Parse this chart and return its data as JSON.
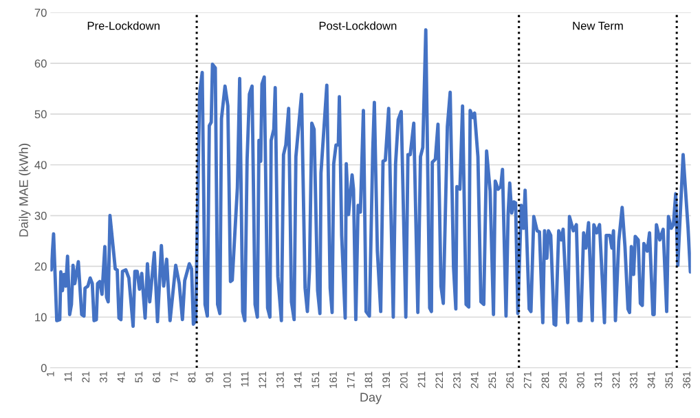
{
  "chart_data": {
    "type": "line",
    "xlabel": "Day",
    "ylabel": "Daily MAE (kWh)",
    "xlim": [
      0.5,
      362.9
    ],
    "xticks": [
      1,
      11,
      21,
      31,
      41,
      51,
      61,
      71,
      81,
      91,
      101,
      111,
      121,
      131,
      141,
      151,
      161,
      171,
      181,
      191,
      201,
      211,
      221,
      231,
      241,
      251,
      261,
      271,
      281,
      291,
      301,
      311,
      321,
      331,
      341,
      351,
      361
    ],
    "ylim": [
      0,
      70
    ],
    "yticks": [
      0,
      10,
      20,
      30,
      40,
      50,
      60,
      70
    ],
    "grid": "y",
    "marker": "none",
    "line_style": "solid",
    "ref_lines": [
      {
        "axis": "x",
        "value": 83.3,
        "color": "#000000",
        "line_style": "dotted"
      },
      {
        "axis": "x",
        "value": 265.6,
        "color": "#000000",
        "line_style": "dotted"
      },
      {
        "axis": "x",
        "value": 354.9,
        "color": "#000000",
        "line_style": "dotted"
      }
    ],
    "annotations": [
      "Pre-Lockdown",
      "Post-Lockdown",
      "New Term"
    ],
    "series": [
      {
        "color": "#4472c4",
        "x": [
          1,
          2.3,
          4.1,
          5.8,
          6.4,
          7.3,
          8.2,
          9.2,
          10.2,
          11.4,
          12.4,
          13.3,
          14.3,
          16.3,
          18.2,
          19.5,
          20.1,
          21.7,
          23,
          24.2,
          25.2,
          26.5,
          27.2,
          28.4,
          29.7,
          31.3,
          32.3,
          33.2,
          34.2,
          36.1,
          37.2,
          38.3,
          39.3,
          40.4,
          41.3,
          43.2,
          44.9,
          47.3,
          48.3,
          49.6,
          50.9,
          52.2,
          54.1,
          55.4,
          56.7,
          59.3,
          61.1,
          63.3,
          64.6,
          66.3,
          68.2,
          71.4,
          73.4,
          75.2,
          76.5,
          79.1,
          80.4,
          81.4,
          82.7,
          84.9,
          86.4,
          88.0,
          89.3,
          90.4,
          91.5,
          92.2,
          93.8,
          95.1,
          96.4,
          97.3,
          99.3,
          100.9,
          102.4,
          103.4,
          106.3,
          107.6,
          109.3,
          110.5,
          111.8,
          113.1,
          114.6,
          116.3,
          117.6,
          118.5,
          119.5,
          120.2,
          121.5,
          123.4,
          124.7,
          125.4,
          126.9,
          127.7,
          129.2,
          131.2,
          132.4,
          133.7,
          135.3,
          136.9,
          138.4,
          139.4,
          142.6,
          144.6,
          145.9,
          147.1,
          148.4,
          149.7,
          151.7,
          153,
          153.6,
          156.9,
          158.8,
          159.9,
          160.8,
          162.1,
          163.4,
          164,
          165.3,
          167.3,
          167.9,
          169.2,
          171.2,
          172,
          173.3,
          174.6,
          175.9,
          177.6,
          179.1,
          181.0,
          182.9,
          183.8,
          185.5,
          187.4,
          188.7,
          190.0,
          191.9,
          194.5,
          195.8,
          197.3,
          199.0,
          201.6,
          202.8,
          204.1,
          206.1,
          208.4,
          209.9,
          211.2,
          212.9,
          215.1,
          216.1,
          216.6,
          218.3,
          219.8,
          221.5,
          222.8,
          225.1,
          226.7,
          228.6,
          229.9,
          230.5,
          232.2,
          233.7,
          235.7,
          237.2,
          238,
          239.6,
          240.5,
          242.4,
          244.1,
          245.7,
          247.3,
          249.3,
          251.2,
          252.2,
          253.8,
          255.3,
          256.3,
          258.3,
          259.5,
          260.4,
          261.5,
          262.7,
          263.7,
          265.0,
          266.9,
          268.2,
          269.1,
          271.4,
          272.4,
          274.0,
          275.9,
          277.2,
          279.1,
          280.1,
          281.4,
          282.3,
          283.6,
          285.5,
          286.4,
          288.1,
          289.6,
          290.6,
          293.2,
          294.2,
          296.4,
          298.1,
          299.6,
          300.7,
          302.2,
          303.5,
          305.0,
          307.1,
          308.0,
          309.6,
          311.2,
          314.0,
          315.0,
          317.0,
          318.2,
          319.1,
          320.2,
          322.1,
          324.0,
          325.6,
          327.3,
          328.2,
          329.2,
          330.5,
          331.4,
          333.1,
          334.3,
          335.4,
          336.3,
          338.2,
          339.5,
          341.4,
          342.1,
          343.4,
          345.3,
          347.2,
          349.2,
          350.2,
          351.8,
          353.0,
          354.3,
          355.5,
          358.5,
          361.3,
          362.6
        ],
        "values": [
          19.3,
          26.4,
          9.3,
          9.5,
          18.9,
          15.2,
          18.4,
          16.1,
          22,
          10.5,
          12.5,
          20.2,
          16.6,
          20.9,
          10.5,
          10.2,
          15.7,
          16.1,
          17.7,
          16.6,
          9.3,
          9.5,
          16.6,
          17,
          14.5,
          23.9,
          13.9,
          13,
          30,
          23.4,
          19.5,
          19.3,
          9.8,
          9.5,
          19,
          19.3,
          17.7,
          8.2,
          19,
          19,
          15.5,
          18.6,
          9.8,
          20.5,
          13,
          22.7,
          9.1,
          24.1,
          16.1,
          21.4,
          9.3,
          20.2,
          16.6,
          9.5,
          17.2,
          20.5,
          19.5,
          8.6,
          9.3,
          53.9,
          58.2,
          12.5,
          10.2,
          47.7,
          48.4,
          59.8,
          59.1,
          12.5,
          10.7,
          49.1,
          55.5,
          51.6,
          17,
          17.3,
          35.5,
          57,
          11.1,
          9.3,
          41.1,
          53.9,
          55.5,
          12.5,
          10,
          44.8,
          40.7,
          55.9,
          57.3,
          11.8,
          10,
          44.8,
          47,
          55.2,
          18,
          9.3,
          42,
          43.9,
          51.1,
          13,
          9.5,
          41.6,
          53.9,
          15.7,
          11.1,
          19.3,
          48.2,
          47,
          15.2,
          10.7,
          38.4,
          55.7,
          15.7,
          10.9,
          40.2,
          43.9,
          43.9,
          53.4,
          26.1,
          9.8,
          40.2,
          30.2,
          38,
          35.2,
          9.5,
          32,
          30.7,
          50.7,
          11.1,
          10.2,
          43,
          52.3,
          23,
          11.1,
          40.7,
          40.9,
          51.1,
          10,
          40.2,
          48.9,
          50.5,
          10,
          42,
          42,
          48.2,
          10.9,
          41.6,
          43.4,
          66.6,
          11.8,
          11.1,
          40.5,
          41.1,
          48,
          16.1,
          12.7,
          47.5,
          54.3,
          19.8,
          11.6,
          35.7,
          35.2,
          51.6,
          12.5,
          12,
          50.7,
          49.3,
          50.2,
          41.6,
          13,
          12.5,
          42.7,
          34.8,
          10.5,
          36.8,
          35.2,
          35.7,
          39.1,
          10.2,
          30.5,
          36.4,
          30.5,
          32.7,
          32.5,
          10.7,
          32,
          27.5,
          35,
          11.6,
          11.1,
          29.8,
          27,
          26.8,
          8.9,
          27,
          21.6,
          27,
          26.1,
          8.6,
          8.4,
          27,
          25.2,
          27.3,
          8.9,
          29.8,
          27,
          28.2,
          9.3,
          9.3,
          26.6,
          23.6,
          28.6,
          9.3,
          28.2,
          26.6,
          28.2,
          8.9,
          26.1,
          26.1,
          23.6,
          27,
          9.3,
          25,
          31.6,
          23.9,
          11.6,
          10.9,
          23.9,
          18.4,
          25.9,
          25.2,
          12.7,
          12.3,
          24.5,
          23,
          26.6,
          10.5,
          10.5,
          28.2,
          25.2,
          27.3,
          11.1,
          29.8,
          27.5,
          28.2,
          34.3,
          20.2,
          42,
          27.5,
          18.9
        ]
      }
    ]
  }
}
